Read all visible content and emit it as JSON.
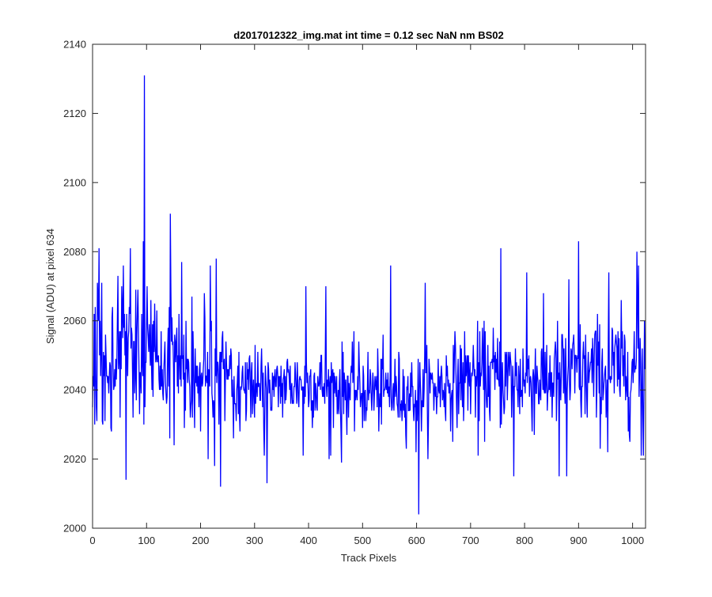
{
  "chart_data": {
    "type": "line",
    "title": "d2017012322_img.mat int time = 0.12 sec  NaN nm BS02",
    "xlabel": "Track Pixels",
    "ylabel": "Signal (ADU) at pixel 634",
    "xlim": [
      0,
      1024
    ],
    "ylim": [
      2000,
      2140
    ],
    "xticks": [
      0,
      100,
      200,
      300,
      400,
      500,
      600,
      700,
      800,
      900,
      1000
    ],
    "yticks": [
      2000,
      2020,
      2040,
      2060,
      2080,
      2100,
      2120,
      2140
    ],
    "grid": false,
    "legend": "none",
    "series_color": "#0000ff",
    "n_points": 1024,
    "mean_trend": [
      [
        0,
        2050
      ],
      [
        100,
        2052
      ],
      [
        200,
        2046
      ],
      [
        300,
        2041
      ],
      [
        400,
        2042
      ],
      [
        500,
        2040
      ],
      [
        600,
        2039
      ],
      [
        700,
        2044
      ],
      [
        800,
        2043
      ],
      [
        900,
        2044
      ],
      [
        1024,
        2047
      ]
    ],
    "noise_spread": [
      [
        0,
        10
      ],
      [
        150,
        10
      ],
      [
        250,
        7.5
      ],
      [
        350,
        5.5
      ],
      [
        500,
        6
      ],
      [
        600,
        5.5
      ],
      [
        700,
        7
      ],
      [
        800,
        7.5
      ],
      [
        900,
        8
      ],
      [
        1024,
        8.5
      ]
    ],
    "spikes": [
      [
        0,
        2035
      ],
      [
        3,
        2062
      ],
      [
        8,
        2031
      ],
      [
        12,
        2081
      ],
      [
        18,
        2031
      ],
      [
        35,
        2028
      ],
      [
        47,
        2073
      ],
      [
        57,
        2076
      ],
      [
        62,
        2014
      ],
      [
        70,
        2081
      ],
      [
        88,
        2045
      ],
      [
        94,
        2083
      ],
      [
        95,
        2030
      ],
      [
        96,
        2131
      ],
      [
        97,
        2035
      ],
      [
        143,
        2026
      ],
      [
        144,
        2091
      ],
      [
        150,
        2046
      ],
      [
        165,
        2077
      ],
      [
        170,
        2029
      ],
      [
        200,
        2028
      ],
      [
        214,
        2020
      ],
      [
        218,
        2076
      ],
      [
        220,
        2060
      ],
      [
        226,
        2018
      ],
      [
        229,
        2078
      ],
      [
        237,
        2012
      ],
      [
        318,
        2021
      ],
      [
        323,
        2013
      ],
      [
        390,
        2021
      ],
      [
        395,
        2070
      ],
      [
        432,
        2070
      ],
      [
        438,
        2020
      ],
      [
        461,
        2019
      ],
      [
        552,
        2076
      ],
      [
        599,
        2022
      ],
      [
        604,
        2004
      ],
      [
        616,
        2071
      ],
      [
        714,
        2021
      ],
      [
        756,
        2081
      ],
      [
        780,
        2015
      ],
      [
        804,
        2074
      ],
      [
        864,
        2015
      ],
      [
        878,
        2015
      ],
      [
        882,
        2072
      ],
      [
        900,
        2083
      ],
      [
        954,
        2022
      ],
      [
        956,
        2074
      ],
      [
        1008,
        2080
      ],
      [
        1011,
        2076
      ],
      [
        1016,
        2021
      ],
      [
        1020,
        2021
      ],
      [
        1022,
        2060
      ]
    ]
  }
}
